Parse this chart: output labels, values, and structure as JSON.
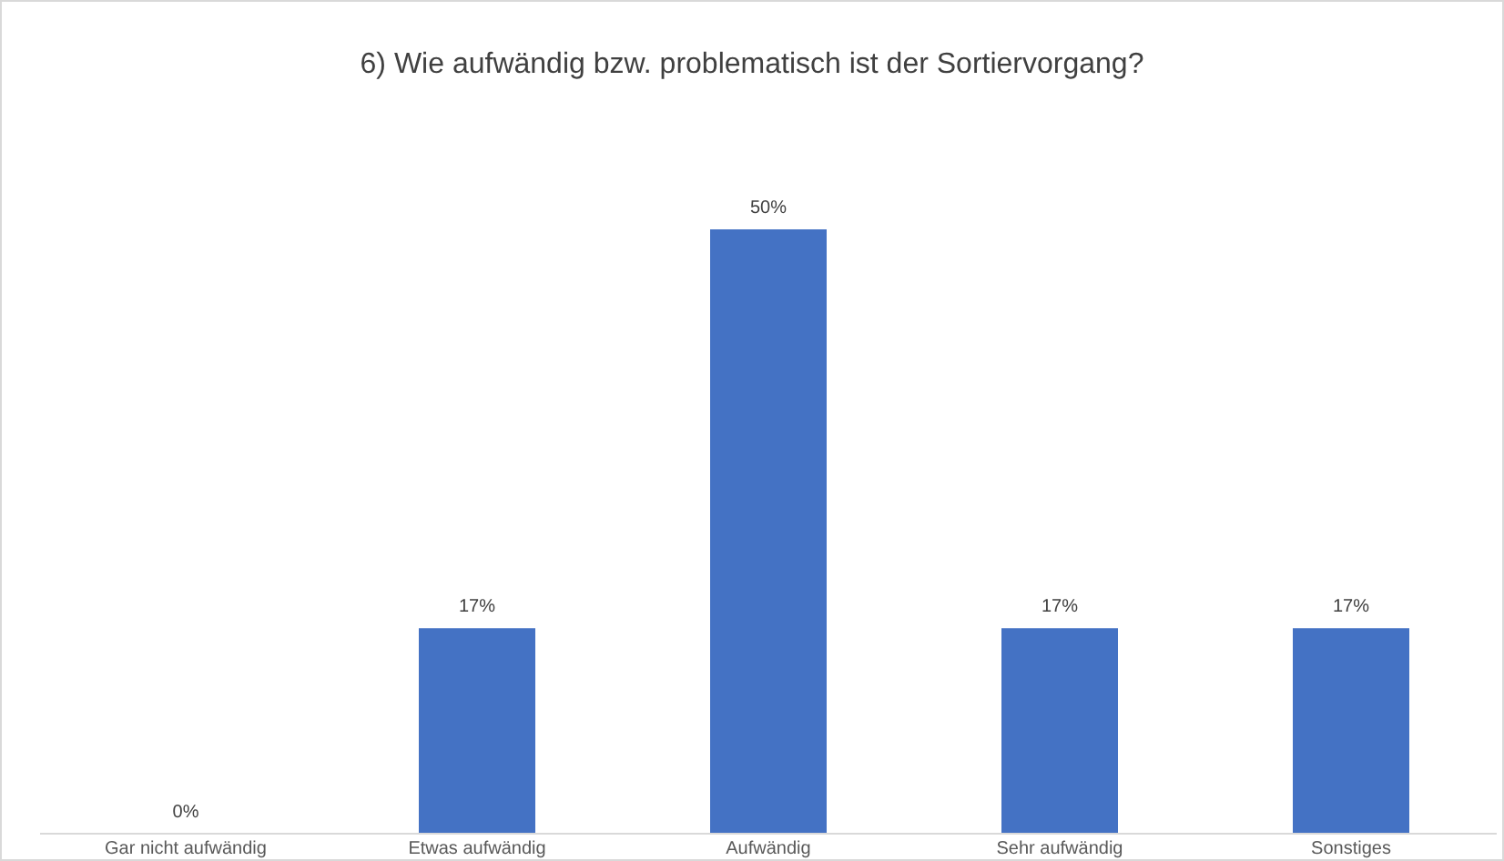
{
  "chart_data": {
    "type": "bar",
    "title": "6) Wie aufwändig bzw. problematisch ist der Sortiervorgang?",
    "categories": [
      "Gar nicht aufwändig",
      "Etwas aufwändig",
      "Aufwändig",
      "Sehr aufwändig",
      "Sonstiges"
    ],
    "values": [
      0,
      17,
      50,
      17,
      17
    ],
    "value_labels": [
      "0%",
      "17%",
      "50%",
      "17%",
      "17%"
    ],
    "color": "#4472c4"
  }
}
